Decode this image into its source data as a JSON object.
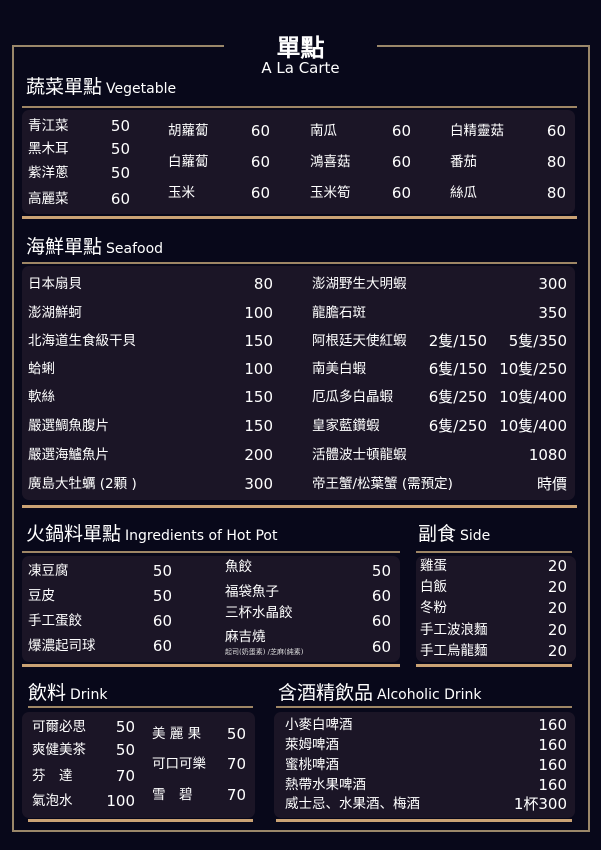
{
  "header": {
    "title": "單點",
    "subtitle": "A La Carte"
  },
  "colors": {
    "background": "#08081a",
    "panel": "#1b1526",
    "frame": "#9a876a",
    "accent_rule": "#caa274"
  },
  "vegetable": {
    "title": "蔬菜單點",
    "title_en": "Vegetable",
    "columns": [
      [
        {
          "name": "青江菜",
          "price": "50"
        },
        {
          "name": "黑木耳",
          "price": "50"
        },
        {
          "name": "紫洋蔥",
          "price": "50"
        },
        {
          "name": "高麗菜",
          "price": "60"
        }
      ],
      [
        {
          "name": "胡蘿蔔",
          "price": "60"
        },
        {
          "name": "白蘿蔔",
          "price": "60"
        },
        {
          "name": "玉米",
          "price": "60"
        }
      ],
      [
        {
          "name": "南瓜",
          "price": "60"
        },
        {
          "name": "鴻喜菇",
          "price": "60"
        },
        {
          "name": "玉米筍",
          "price": "60"
        }
      ],
      [
        {
          "name": "白精靈菇",
          "price": "60"
        },
        {
          "name": "番茄",
          "price": "80"
        },
        {
          "name": "絲瓜",
          "price": "80"
        }
      ]
    ]
  },
  "seafood": {
    "title": "海鮮單點",
    "title_en": "Seafood",
    "left": [
      {
        "name": "日本扇貝",
        "price": "80"
      },
      {
        "name": "澎湖鮮蚵",
        "price": "100"
      },
      {
        "name": "北海道生食級干貝",
        "price": "150"
      },
      {
        "name": "蛤蜊",
        "price": "100"
      },
      {
        "name": "軟絲",
        "price": "150"
      },
      {
        "name": "嚴選鯛魚腹片",
        "price": "150"
      },
      {
        "name": "嚴選海鱸魚片",
        "price": "200"
      },
      {
        "name": "廣島大牡蠣 (2顆 )",
        "price": "300"
      }
    ],
    "right": [
      {
        "name": "澎湖野生大明蝦",
        "price_small": "",
        "price": "300"
      },
      {
        "name": "龍膽石斑",
        "price_small": "",
        "price": "350"
      },
      {
        "name": "阿根廷天使紅蝦",
        "price_small": "2隻/150",
        "price": "5隻/350"
      },
      {
        "name": "南美白蝦",
        "price_small": "6隻/150",
        "price": "10隻/250"
      },
      {
        "name": "厄瓜多白晶蝦",
        "price_small": "6隻/250",
        "price": "10隻/400"
      },
      {
        "name": "皇家藍鑽蝦",
        "price_small": "6隻/250",
        "price": "10隻/400"
      },
      {
        "name": "活體波士頓龍蝦",
        "price_small": "",
        "price": "1080"
      },
      {
        "name": "帝王蟹/松葉蟹 (需預定)",
        "price_small": "",
        "price": "時價"
      }
    ]
  },
  "hotpot": {
    "title": "火鍋料單點",
    "title_en": "Ingredients of Hot Pot",
    "left": [
      {
        "name": "凍豆腐",
        "price": "50"
      },
      {
        "name": "豆皮",
        "price": "50"
      },
      {
        "name": "手工蛋餃",
        "price": "60"
      },
      {
        "name": "爆濃起司球",
        "price": "60"
      }
    ],
    "right": [
      {
        "name": "魚餃",
        "price": "50"
      },
      {
        "name": "福袋魚子",
        "price": "60"
      },
      {
        "name": "三杯水晶餃",
        "price": "60"
      },
      {
        "name": "麻吉燒",
        "price": "60",
        "note": "起司(奶蛋素) /芝麻(純素)"
      }
    ]
  },
  "side": {
    "title": "副食",
    "title_en": "Side",
    "items": [
      {
        "name": "雞蛋",
        "price": "20"
      },
      {
        "name": "白飯",
        "price": "20"
      },
      {
        "name": "冬粉",
        "price": "20"
      },
      {
        "name": "手工波浪麵",
        "price": "20"
      },
      {
        "name": "手工烏龍麵",
        "price": "20"
      }
    ]
  },
  "drink": {
    "title": "飲料",
    "title_en": "Drink",
    "left": [
      {
        "name": "可爾必思",
        "price": "50"
      },
      {
        "name": "爽健美茶",
        "price": "50"
      },
      {
        "name": "芬　達",
        "price": "70"
      },
      {
        "name": "氣泡水",
        "price": "100"
      }
    ],
    "right": [
      {
        "name": "美 麗 果",
        "price": "50"
      },
      {
        "name": "可口可樂",
        "price": "70"
      },
      {
        "name": "雪　碧",
        "price": "70"
      }
    ]
  },
  "alcohol": {
    "title": "含酒精飲品",
    "title_en": "Alcoholic Drink",
    "items": [
      {
        "name": "小麥白啤酒",
        "price": "160"
      },
      {
        "name": "萊姆啤酒",
        "price": "160"
      },
      {
        "name": "蜜桃啤酒",
        "price": "160"
      },
      {
        "name": "熱帶水果啤酒",
        "price": "160"
      },
      {
        "name": "威士忌、水果酒、梅酒",
        "price": "1杯300"
      }
    ]
  }
}
